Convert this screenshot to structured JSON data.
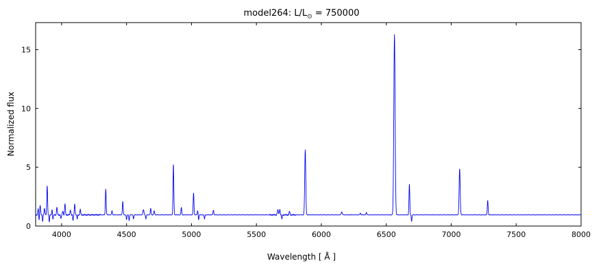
{
  "figure": {
    "title_prefix": "model264: L/L",
    "title_sub": "⊙",
    "title_suffix": " = 750000"
  },
  "chart_data": {
    "type": "line",
    "title": "model264: L/L⊙ = 750000",
    "xlabel": "Wavelength [ Å ]",
    "ylabel": "Normalized flux",
    "xlim": [
      3800,
      8000
    ],
    "ylim": [
      0,
      17.3
    ],
    "xticks": [
      4000,
      4500,
      5000,
      5500,
      6000,
      6500,
      7000,
      7500,
      8000
    ],
    "yticks": [
      0,
      5,
      10,
      15
    ],
    "line_color": "#0000ee",
    "continuum": 0.95,
    "emission_lines": [
      {
        "wavelength": 3820,
        "peak": 1.5,
        "width": 3
      },
      {
        "wavelength": 3835,
        "peak": 1.8,
        "width": 3
      },
      {
        "wavelength": 3868,
        "peak": 1.5,
        "width": 3
      },
      {
        "wavelength": 3889,
        "peak": 3.5,
        "width": 3
      },
      {
        "wavelength": 3927,
        "peak": 1.4,
        "width": 3
      },
      {
        "wavelength": 3964,
        "peak": 1.6,
        "width": 3
      },
      {
        "wavelength": 4009,
        "peak": 1.3,
        "width": 3
      },
      {
        "wavelength": 4026,
        "peak": 1.9,
        "width": 3
      },
      {
        "wavelength": 4068,
        "peak": 1.4,
        "width": 3
      },
      {
        "wavelength": 4101,
        "peak": 1.9,
        "width": 3
      },
      {
        "wavelength": 4144,
        "peak": 1.4,
        "width": 3
      },
      {
        "wavelength": 4340,
        "peak": 3.15,
        "width": 3
      },
      {
        "wavelength": 4388,
        "peak": 1.3,
        "width": 3
      },
      {
        "wavelength": 4471,
        "peak": 2.1,
        "width": 3
      },
      {
        "wavelength": 4630,
        "peak": 1.4,
        "width": 4
      },
      {
        "wavelength": 4686,
        "peak": 1.5,
        "width": 3
      },
      {
        "wavelength": 4713,
        "peak": 1.3,
        "width": 3
      },
      {
        "wavelength": 4861,
        "peak": 5.3,
        "width": 3
      },
      {
        "wavelength": 4922,
        "peak": 1.6,
        "width": 3
      },
      {
        "wavelength": 5016,
        "peak": 2.85,
        "width": 3
      },
      {
        "wavelength": 5048,
        "peak": 1.3,
        "width": 3
      },
      {
        "wavelength": 5169,
        "peak": 1.35,
        "width": 3
      },
      {
        "wavelength": 5665,
        "peak": 1.35,
        "width": 4
      },
      {
        "wavelength": 5680,
        "peak": 1.45,
        "width": 3
      },
      {
        "wavelength": 5755,
        "peak": 1.25,
        "width": 3
      },
      {
        "wavelength": 5876,
        "peak": 6.5,
        "width": 4
      },
      {
        "wavelength": 6157,
        "peak": 1.2,
        "width": 4
      },
      {
        "wavelength": 6300,
        "peak": 1.1,
        "width": 3
      },
      {
        "wavelength": 6347,
        "peak": 1.15,
        "width": 3
      },
      {
        "wavelength": 6563,
        "peak": 16.3,
        "width": 5
      },
      {
        "wavelength": 6678,
        "peak": 3.6,
        "width": 3
      },
      {
        "wavelength": 7065,
        "peak": 4.9,
        "width": 4
      },
      {
        "wavelength": 7281,
        "peak": 2.2,
        "width": 3
      }
    ],
    "absorption_lines": [
      {
        "wavelength": 3826,
        "trough": 0.45,
        "width": 2.5
      },
      {
        "wavelength": 3854,
        "trough": 0.4,
        "width": 2.5
      },
      {
        "wavelength": 3905,
        "trough": 0.35,
        "width": 2.5
      },
      {
        "wavelength": 3933,
        "trough": 0.5,
        "width": 2.5
      },
      {
        "wavelength": 3995,
        "trough": 0.6,
        "width": 2.5
      },
      {
        "wavelength": 4088,
        "trough": 0.45,
        "width": 2.5
      },
      {
        "wavelength": 4120,
        "trough": 0.6,
        "width": 2.5
      },
      {
        "wavelength": 4500,
        "trough": 0.55,
        "width": 2.5
      },
      {
        "wavelength": 4520,
        "trough": 0.45,
        "width": 2.5
      },
      {
        "wavelength": 4554,
        "trough": 0.6,
        "width": 2.5
      },
      {
        "wavelength": 4649,
        "trough": 0.6,
        "width": 2.5
      },
      {
        "wavelength": 5055,
        "trough": 0.5,
        "width": 2.5
      },
      {
        "wavelength": 5100,
        "trough": 0.6,
        "width": 2.5
      },
      {
        "wavelength": 5696,
        "trough": 0.6,
        "width": 2.5
      },
      {
        "wavelength": 6695,
        "trough": 0.4,
        "width": 2.5
      }
    ]
  }
}
